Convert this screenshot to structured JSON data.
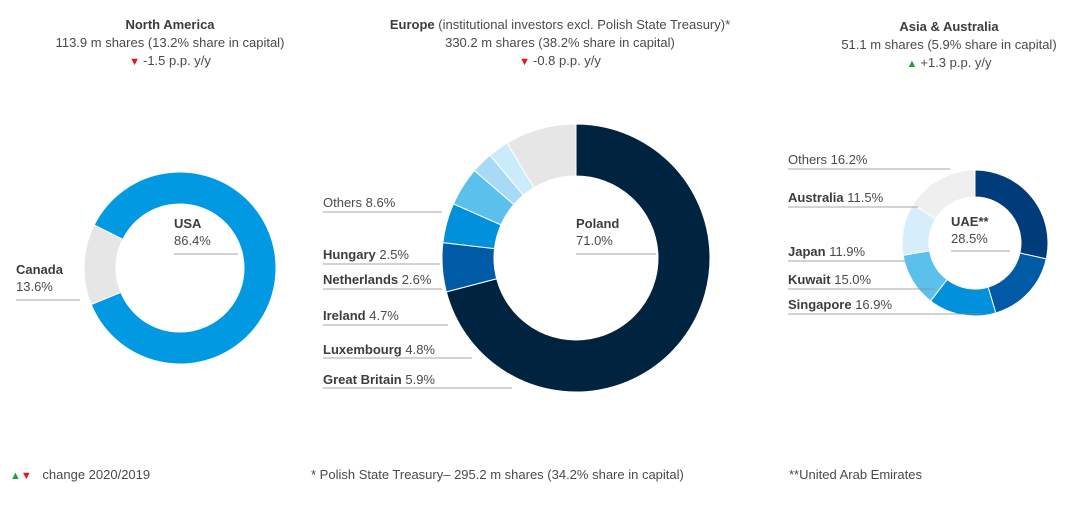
{
  "headers": {
    "na": {
      "title": "North America",
      "shares": "113.9 m shares  (13.2% share in capital)",
      "change": "-1.5 p.p. y/y",
      "dir": "down"
    },
    "eu": {
      "title": "Europe",
      "title_note": "(institutional investors excl. Polish State Treasury)*",
      "shares": "330.2 m shares (38.2% share in capital)",
      "change": "-0.8 p.p. y/y",
      "dir": "down"
    },
    "asia": {
      "title": "Asia & Australia",
      "shares": "51.1 m shares (5.9% share in capital)",
      "change": "+1.3 p.p. y/y",
      "dir": "up"
    }
  },
  "footer": {
    "legend_up": "▲",
    "legend_down": "▼",
    "legend_text": "change 2020/2019",
    "note_treasury": "* Polish State Treasury– 295.2 m shares (34.2% share in capital)",
    "note_uae": "**United Arab Emirates"
  },
  "chart_data": [
    {
      "type": "pie",
      "region": "North America",
      "slices": [
        {
          "label": "USA",
          "value": 86.4,
          "pct": "86.4%",
          "color": "#0099e2"
        },
        {
          "label": "Canada",
          "value": 13.6,
          "pct": "13.6%",
          "color": "#e6e6e6"
        }
      ]
    },
    {
      "type": "pie",
      "region": "Europe",
      "slices": [
        {
          "label": "Poland",
          "value": 71.0,
          "pct": "71.0%",
          "color": "#002340"
        },
        {
          "label": "Great Britain",
          "value": 5.9,
          "pct": "5.9%",
          "color": "#005aa5"
        },
        {
          "label": "Luxembourg",
          "value": 4.8,
          "pct": "4.8%",
          "color": "#0090dc"
        },
        {
          "label": "Ireland",
          "value": 4.7,
          "pct": "4.7%",
          "color": "#5cc0ec"
        },
        {
          "label": "Netherlands",
          "value": 2.6,
          "pct": "2.6%",
          "color": "#a8d9f5"
        },
        {
          "label": "Hungary",
          "value": 2.5,
          "pct": "2.5%",
          "color": "#c9ebfa"
        },
        {
          "label": "Others",
          "value": 8.6,
          "pct": "8.6%",
          "color": "#e6e6e6"
        }
      ]
    },
    {
      "type": "pie",
      "region": "Asia & Australia",
      "slices": [
        {
          "label": "UAE**",
          "value": 28.5,
          "pct": "28.5%",
          "color": "#003b7a"
        },
        {
          "label": "Singapore",
          "value": 16.9,
          "pct": "16.9%",
          "color": "#005aa5"
        },
        {
          "label": "Kuwait",
          "value": 15.0,
          "pct": "15.0%",
          "color": "#0090dc"
        },
        {
          "label": "Japan",
          "value": 11.9,
          "pct": "11.9%",
          "color": "#5cc0ec"
        },
        {
          "label": "Australia",
          "value": 11.5,
          "pct": "11.5%",
          "color": "#d6eefa"
        },
        {
          "label": "Others",
          "value": 16.2,
          "pct": "16.2%",
          "color": "#efefef"
        }
      ]
    }
  ]
}
